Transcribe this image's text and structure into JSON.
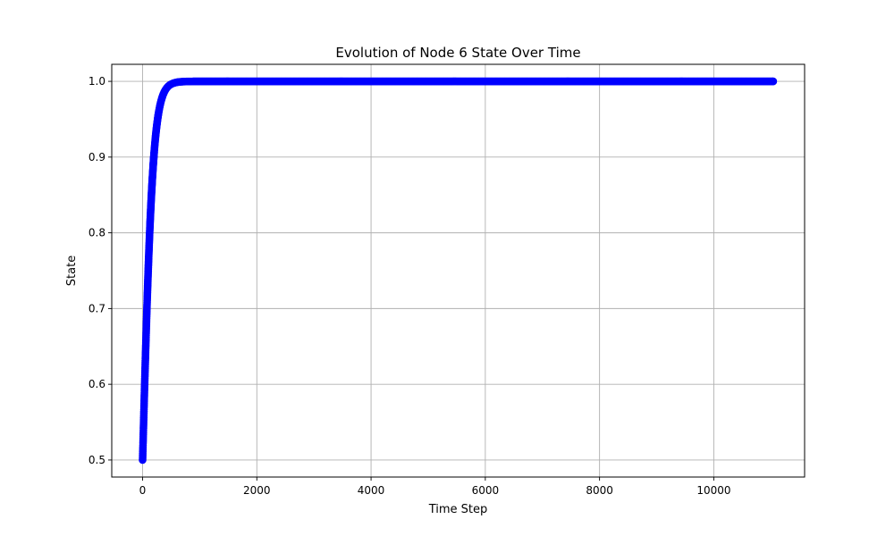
{
  "chart_data": {
    "type": "scatter",
    "title": "Evolution of Node 6 State Over Time",
    "xlabel": "Time Step",
    "ylabel": "State",
    "xlim": [
      -540,
      11590
    ],
    "ylim": [
      0.4775,
      1.0225
    ],
    "xticks": [
      0,
      2000,
      4000,
      6000,
      8000,
      10000
    ],
    "xtick_labels": [
      "0",
      "2000",
      "4000",
      "6000",
      "8000",
      "10000"
    ],
    "yticks": [
      0.5,
      0.6,
      0.7,
      0.8,
      0.9,
      1.0
    ],
    "ytick_labels": [
      "0.5",
      "0.6",
      "0.7",
      "0.8",
      "0.9",
      "1.0"
    ],
    "grid": true,
    "marker_color": "#0000ff",
    "series": [
      {
        "model": "logistic",
        "x_start": 0,
        "x_end": 11040,
        "points": 11041,
        "initial_value": 0.5,
        "asymptote": 1.0,
        "rate_per_step": 0.0112
      }
    ]
  }
}
